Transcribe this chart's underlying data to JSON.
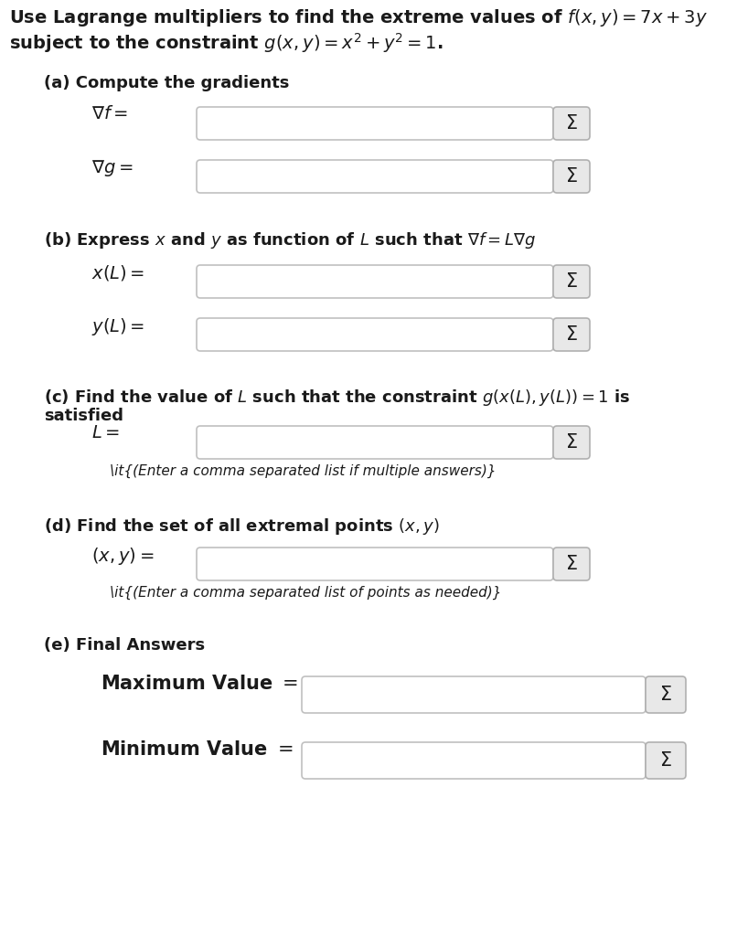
{
  "bg_color": "#ffffff",
  "title_line1": "Use Lagrange multipliers to find the extreme values of $f(x, y) = 7x + 3y$",
  "title_line2": "subject to the constraint $g(x, y) = x^2 + y^2 = 1$.",
  "part_a_label": "(a) Compute the gradients",
  "part_b_label": "(b) Express $x$ and $y$ as function of $L$ such that $\\nabla f = L\\nabla g$",
  "part_c_label1": "(c) Find the value of $L$ such that the constraint $g(x(L), y(L)) = 1$ is",
  "part_c_label2": "satisfied",
  "part_c_note": "(Enter a comma separated list if multiple answers)",
  "part_d_label": "(d) Find the set of all extremal points $(x, y)$",
  "part_d_note": "(Enter a comma separated list of points as needed)",
  "part_e_label": "(e) Final Answers",
  "label_nabla_f": "$\\nabla f =$",
  "label_nabla_g": "$\\nabla g =$",
  "label_xL": "$x(L) =$",
  "label_yL": "$y(L) =$",
  "label_L": "$L =$",
  "label_xy": "$(x, y) =$",
  "label_max": "Maximum Value $=$",
  "label_min": "Minimum Value $=$",
  "font_size_title": 14,
  "font_size_part": 13,
  "font_size_label": 14,
  "font_size_note": 11,
  "text_color": "#1a1a1a",
  "box_border_color": "#c0c0c0",
  "box_fill_color": "#ffffff",
  "sigma_fill_color": "#e8e8e8",
  "sigma_border_color": "#b0b0b0"
}
